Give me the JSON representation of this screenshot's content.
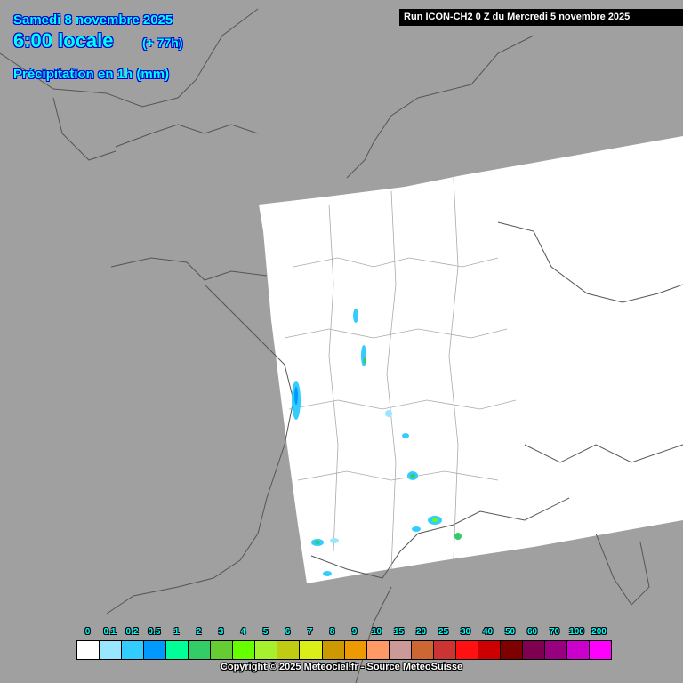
{
  "header": {
    "date": "Samedi 8 novembre 2025",
    "time": "6:00 locale",
    "lead": "(+ 77h)",
    "parameter": "Précipitation en 1h (mm)"
  },
  "run_banner": "Run ICON-CH2 0 Z du Mercredi 5 novembre 2025",
  "legend": {
    "labels": [
      "0",
      "0.1",
      "0.2",
      "0.5",
      "1",
      "2",
      "3",
      "4",
      "5",
      "6",
      "7",
      "8",
      "9",
      "10",
      "15",
      "20",
      "25",
      "30",
      "40",
      "50",
      "60",
      "70",
      "100",
      "200"
    ],
    "colors": [
      "#ffffff",
      "#99e6ff",
      "#33ccff",
      "#0099ff",
      "#00ff99",
      "#33cc66",
      "#66cc33",
      "#66ff00",
      "#a6f02e",
      "#bfcc11",
      "#d9ef17",
      "#cc9900",
      "#ef9900",
      "#ff9966",
      "#cc9999",
      "#cc6633",
      "#cc3333",
      "#ff1111",
      "#cc0000",
      "#7f0000",
      "#7f0050",
      "#99007f",
      "#cc00cc",
      "#ff00ff"
    ]
  },
  "copyright": "Copyright © 2025 Meteociel.fr - Source MeteoSuisse",
  "colors": {
    "background": "#a0a0a0",
    "domain": "#ffffff",
    "text_accent": "#00ffff"
  }
}
